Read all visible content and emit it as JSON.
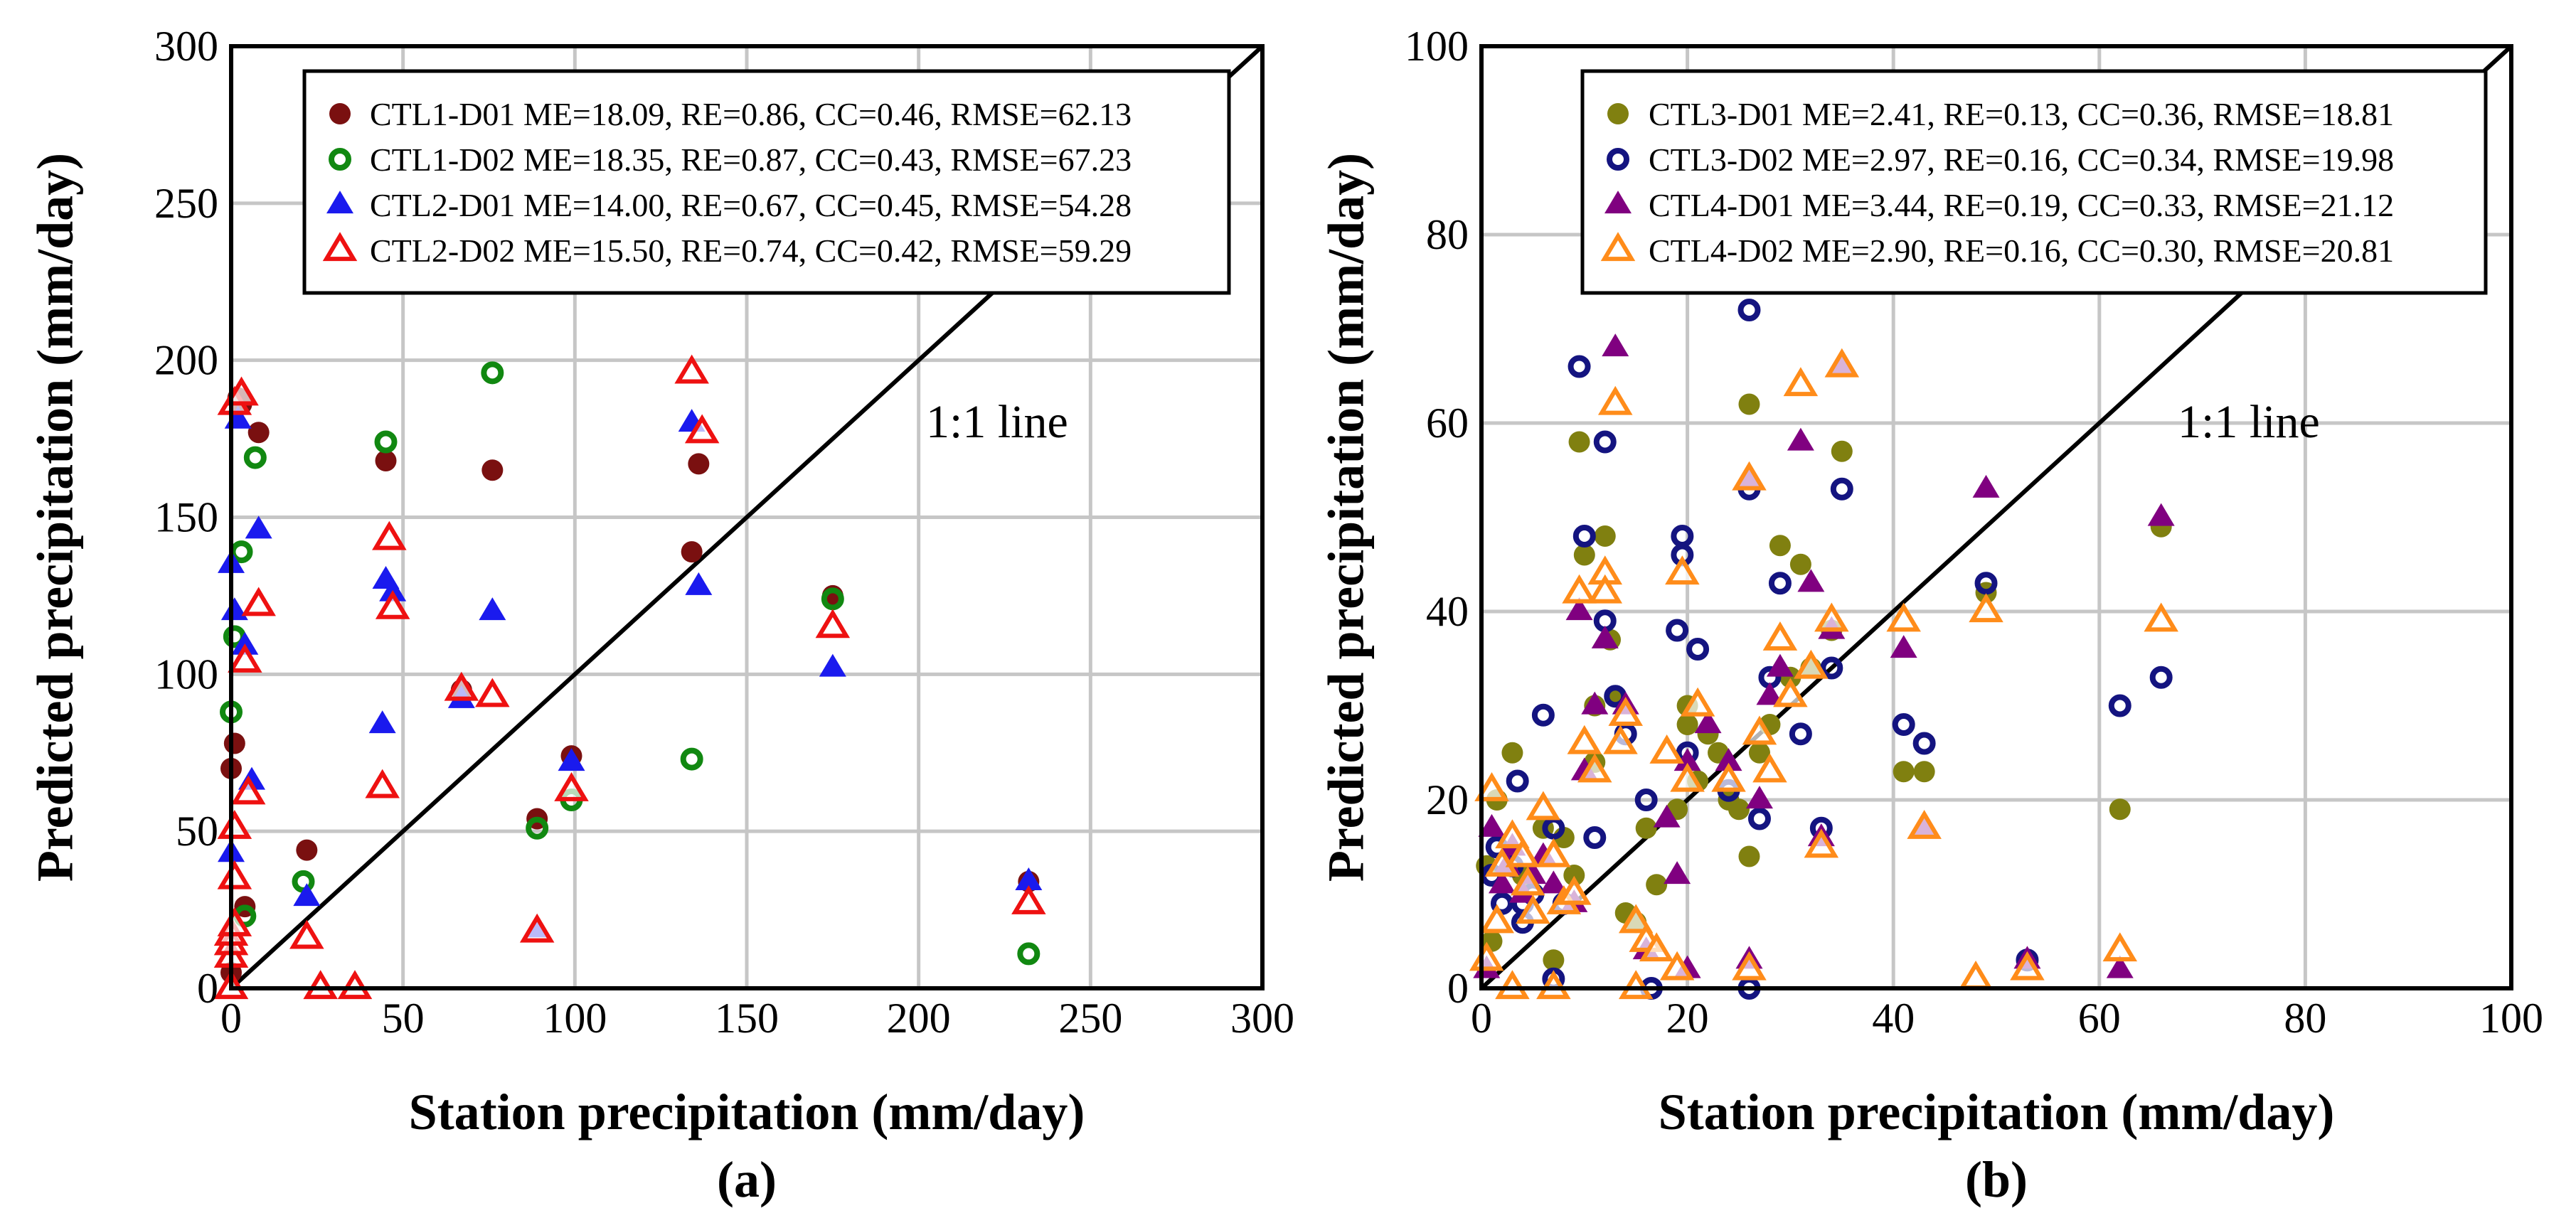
{
  "chart_data": [
    {
      "type": "scatter",
      "panel_label": "(a)",
      "xlabel": "Station precipitation  (mm/day)",
      "ylabel": "Predicted precipitation (mm/day)",
      "xlim": [
        0,
        300
      ],
      "ylim": [
        0,
        300
      ],
      "xticks": [
        0,
        50,
        100,
        150,
        200,
        250,
        300
      ],
      "yticks": [
        0,
        50,
        100,
        150,
        200,
        250,
        300
      ],
      "grid": true,
      "legend_position": "top-right",
      "annotation": "1:1 line",
      "reference_line": [
        [
          0,
          0
        ],
        [
          300,
          300
        ]
      ],
      "series": [
        {
          "name": "CTL1-D01 ME=18.09, RE=0.86, CC=0.46, RMSE=62.13",
          "marker": "filled-circle",
          "color": "#7a1010",
          "points": [
            [
              0,
              5
            ],
            [
              0,
              70
            ],
            [
              1,
              78
            ],
            [
              2,
              188
            ],
            [
              3,
              186
            ],
            [
              4,
              26
            ],
            [
              8,
              177
            ],
            [
              22,
              44
            ],
            [
              45,
              168
            ],
            [
              67,
              95
            ],
            [
              76,
              165
            ],
            [
              89,
              54
            ],
            [
              99,
              74
            ],
            [
              134,
              139
            ],
            [
              136,
              167
            ],
            [
              175,
              125
            ],
            [
              232,
              34
            ]
          ]
        },
        {
          "name": "CTL1-D02 ME=18.35, RE=0.87, CC=0.43, RMSE=67.23",
          "marker": "ring",
          "color": "#118811",
          "points": [
            [
              0,
              88
            ],
            [
              1,
              112
            ],
            [
              3,
              139
            ],
            [
              4,
              23
            ],
            [
              7,
              169
            ],
            [
              21,
              34
            ],
            [
              45,
              174
            ],
            [
              76,
              196
            ],
            [
              89,
              51
            ],
            [
              99,
              60
            ],
            [
              134,
              73
            ],
            [
              175,
              124
            ],
            [
              232,
              11
            ]
          ]
        },
        {
          "name": "CTL2-D01 ME=14.00, RE=0.67, CC=0.45, RMSE=54.28",
          "marker": "filled-triangle",
          "color": "#1a1aee",
          "points": [
            [
              0,
              43
            ],
            [
              0,
              135
            ],
            [
              1,
              120
            ],
            [
              2,
              181
            ],
            [
              4,
              109
            ],
            [
              6,
              66
            ],
            [
              8,
              146
            ],
            [
              22,
              29
            ],
            [
              44,
              84
            ],
            [
              45,
              130
            ],
            [
              47,
              126
            ],
            [
              67,
              92
            ],
            [
              76,
              120
            ],
            [
              89,
              19
            ],
            [
              99,
              72
            ],
            [
              134,
              180
            ],
            [
              136,
              128
            ],
            [
              175,
              102
            ],
            [
              232,
              34
            ]
          ]
        },
        {
          "name": "CTL2-D02 ME=15.50, RE=0.74, CC=0.42, RMSE=59.29",
          "marker": "open-triangle",
          "color": "#ee1111",
          "points": [
            [
              0,
              0
            ],
            [
              0,
              10
            ],
            [
              0,
              14
            ],
            [
              0,
              17
            ],
            [
              1,
              20
            ],
            [
              1,
              35
            ],
            [
              1,
              51
            ],
            [
              1,
              186
            ],
            [
              3,
              189
            ],
            [
              4,
              104
            ],
            [
              5,
              62
            ],
            [
              8,
              122
            ],
            [
              22,
              16
            ],
            [
              26,
              0
            ],
            [
              36,
              0
            ],
            [
              44,
              64
            ],
            [
              46,
              143
            ],
            [
              47,
              121
            ],
            [
              67,
              95
            ],
            [
              76,
              93
            ],
            [
              89,
              18
            ],
            [
              99,
              63
            ],
            [
              134,
              196
            ],
            [
              137,
              177
            ],
            [
              175,
              115
            ],
            [
              232,
              27
            ]
          ]
        }
      ]
    },
    {
      "type": "scatter",
      "panel_label": "(b)",
      "xlabel": "Station precipitation  (mm/day)",
      "ylabel": "Predicted precipitation (mm/day)",
      "xlim": [
        0,
        100
      ],
      "ylim": [
        0,
        100
      ],
      "xticks": [
        0,
        20,
        40,
        60,
        80,
        100
      ],
      "yticks": [
        0,
        20,
        40,
        60,
        80,
        100
      ],
      "grid": true,
      "legend_position": "top-right",
      "annotation": "1:1 line",
      "reference_line": [
        [
          0,
          0
        ],
        [
          100,
          100
        ]
      ],
      "series": [
        {
          "name": "CTL3-D01 ME=2.41, RE=0.13, CC=0.36, RMSE=18.81",
          "marker": "filled-circle",
          "color": "#808010",
          "points": [
            [
              0.5,
              13
            ],
            [
              1,
              5
            ],
            [
              1.5,
              20
            ],
            [
              3,
              25
            ],
            [
              4,
              12
            ],
            [
              6,
              17
            ],
            [
              7,
              3
            ],
            [
              8,
              16
            ],
            [
              9,
              12
            ],
            [
              9.5,
              58
            ],
            [
              10,
              46
            ],
            [
              11,
              30
            ],
            [
              11,
              24
            ],
            [
              12,
              48
            ],
            [
              12.5,
              37
            ],
            [
              13,
              31
            ],
            [
              14,
              8
            ],
            [
              15,
              7
            ],
            [
              16,
              17
            ],
            [
              17,
              11
            ],
            [
              19,
              19
            ],
            [
              20,
              30
            ],
            [
              20,
              28
            ],
            [
              21,
              22
            ],
            [
              22,
              27
            ],
            [
              23,
              25
            ],
            [
              24,
              20
            ],
            [
              25,
              19
            ],
            [
              26,
              14
            ],
            [
              26,
              62
            ],
            [
              27,
              25
            ],
            [
              28,
              28
            ],
            [
              29,
              47
            ],
            [
              30,
              33
            ],
            [
              31,
              45
            ],
            [
              32,
              34
            ],
            [
              34,
              38
            ],
            [
              35,
              57
            ],
            [
              41,
              23
            ],
            [
              43,
              23
            ],
            [
              49,
              42
            ],
            [
              62,
              19
            ],
            [
              66,
              49
            ]
          ]
        },
        {
          "name": "CTL3-D02 ME=2.97, RE=0.16, CC=0.34, RMSE=19.98",
          "marker": "ring",
          "color": "#141480",
          "points": [
            [
              1,
              12
            ],
            [
              1.5,
              15
            ],
            [
              2,
              9
            ],
            [
              3,
              13
            ],
            [
              3.5,
              22
            ],
            [
              4,
              9
            ],
            [
              4,
              7
            ],
            [
              5,
              10
            ],
            [
              6,
              29
            ],
            [
              7,
              17
            ],
            [
              7,
              1
            ],
            [
              8,
              9
            ],
            [
              9.5,
              66
            ],
            [
              10,
              48
            ],
            [
              11,
              16
            ],
            [
              12,
              58
            ],
            [
              12,
              39
            ],
            [
              13,
              31
            ],
            [
              14,
              27
            ],
            [
              16,
              20
            ],
            [
              16.5,
              0
            ],
            [
              19,
              38
            ],
            [
              19.5,
              48
            ],
            [
              19.5,
              46
            ],
            [
              20,
              25
            ],
            [
              21,
              36
            ],
            [
              24,
              21
            ],
            [
              26,
              72
            ],
            [
              26,
              53
            ],
            [
              26,
              0
            ],
            [
              27,
              18
            ],
            [
              28,
              33
            ],
            [
              29,
              43
            ],
            [
              31,
              27
            ],
            [
              33,
              17
            ],
            [
              34,
              34
            ],
            [
              35,
              53
            ],
            [
              41,
              28
            ],
            [
              43,
              26
            ],
            [
              49,
              43
            ],
            [
              53,
              3
            ],
            [
              62,
              30
            ],
            [
              66,
              33
            ]
          ]
        },
        {
          "name": "CTL4-D01 ME=3.44, RE=0.19, CC=0.33, RMSE=21.12",
          "marker": "filled-triangle",
          "color": "#800080",
          "points": [
            [
              0.5,
              2
            ],
            [
              1,
              17
            ],
            [
              2,
              11
            ],
            [
              2.5,
              13
            ],
            [
              3,
              15
            ],
            [
              4,
              10
            ],
            [
              5,
              12
            ],
            [
              6,
              14
            ],
            [
              7,
              11
            ],
            [
              9,
              9
            ],
            [
              9.5,
              40
            ],
            [
              10,
              23
            ],
            [
              11,
              30
            ],
            [
              12,
              37
            ],
            [
              13,
              68
            ],
            [
              14,
              30
            ],
            [
              16,
              4
            ],
            [
              18,
              18
            ],
            [
              19,
              12
            ],
            [
              20,
              24
            ],
            [
              20,
              2
            ],
            [
              22,
              28
            ],
            [
              24,
              24
            ],
            [
              26,
              54
            ],
            [
              26,
              3
            ],
            [
              27,
              20
            ],
            [
              28,
              31
            ],
            [
              29,
              34
            ],
            [
              31,
              58
            ],
            [
              32,
              43
            ],
            [
              33,
              16
            ],
            [
              34,
              38
            ],
            [
              35,
              66
            ],
            [
              41,
              36
            ],
            [
              43,
              17
            ],
            [
              49,
              53
            ],
            [
              53,
              3
            ],
            [
              62,
              2
            ],
            [
              66,
              50
            ]
          ]
        },
        {
          "name": "CTL4-D02 ME=2.90, RE=0.16, CC=0.30, RMSE=20.81",
          "marker": "open-triangle",
          "color": "#ff8c1a",
          "points": [
            [
              0.5,
              3
            ],
            [
              1,
              21
            ],
            [
              1.5,
              7
            ],
            [
              2,
              13
            ],
            [
              3,
              16
            ],
            [
              3,
              0
            ],
            [
              4,
              14
            ],
            [
              4.5,
              11
            ],
            [
              5,
              8
            ],
            [
              6,
              19
            ],
            [
              7,
              14
            ],
            [
              7,
              0
            ],
            [
              8,
              9
            ],
            [
              9,
              10
            ],
            [
              9.5,
              42
            ],
            [
              10,
              26
            ],
            [
              11,
              23
            ],
            [
              12,
              44
            ],
            [
              12,
              42
            ],
            [
              13,
              62
            ],
            [
              13.5,
              26
            ],
            [
              14,
              29
            ],
            [
              15,
              0
            ],
            [
              15,
              7
            ],
            [
              16,
              5
            ],
            [
              17,
              4
            ],
            [
              18,
              25
            ],
            [
              19,
              2
            ],
            [
              19.5,
              44
            ],
            [
              20,
              22
            ],
            [
              21,
              30
            ],
            [
              24,
              22
            ],
            [
              26,
              54
            ],
            [
              26,
              2
            ],
            [
              27,
              27
            ],
            [
              28,
              23
            ],
            [
              29,
              37
            ],
            [
              30,
              31
            ],
            [
              31,
              64
            ],
            [
              32,
              34
            ],
            [
              33,
              15
            ],
            [
              34,
              39
            ],
            [
              35,
              66
            ],
            [
              41,
              39
            ],
            [
              43,
              17
            ],
            [
              48,
              1
            ],
            [
              49,
              40
            ],
            [
              53,
              2
            ],
            [
              62,
              4
            ],
            [
              66,
              39
            ]
          ]
        }
      ]
    }
  ]
}
